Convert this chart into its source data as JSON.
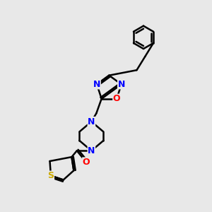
{
  "bg_color": "#e8e8e8",
  "line_color": "#000000",
  "bond_width": 1.8,
  "atom_colors": {
    "N": "#0000FF",
    "O": "#FF0000",
    "S": "#CCAA00",
    "C": "#000000"
  }
}
